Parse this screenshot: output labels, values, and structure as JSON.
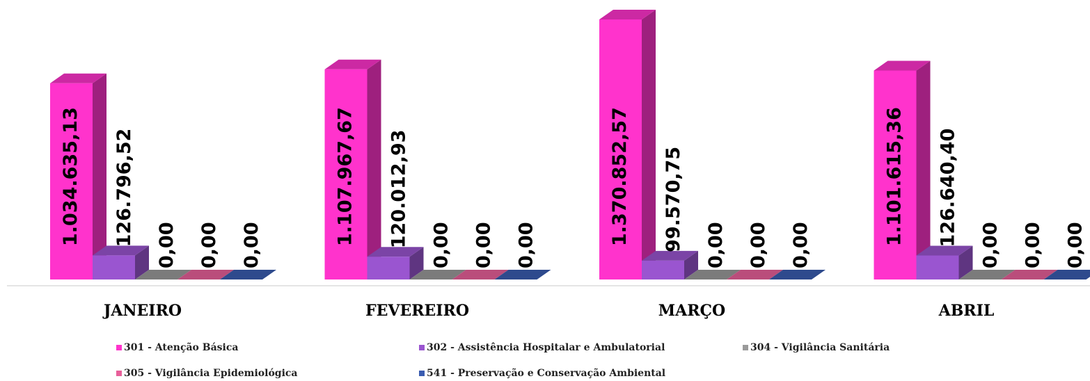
{
  "chart_data": {
    "type": "bar3d",
    "categories": [
      "JANEIRO",
      "FEVEREIRO",
      "MARÇO",
      "ABRIL"
    ],
    "series": [
      {
        "name": "301 - Atenção Básica",
        "color": "#ff33cc",
        "values": [
          1034635.13,
          1107967.67,
          1370852.57,
          1101615.36
        ],
        "value_labels": [
          "1.034.635,13",
          "1.107.967,67",
          "1.370.852,57",
          "1.101.615,36"
        ]
      },
      {
        "name": "302 - Assistência Hospitalar e Ambulatorial",
        "color": "#9a55d0",
        "values": [
          126796.52,
          120012.93,
          99570.75,
          126640.4
        ],
        "value_labels": [
          "126.796,52",
          "120.012,93",
          "99.570,75",
          "126.640,40"
        ]
      },
      {
        "name": "304 - Vigilância Sanitária",
        "color": "#9a9a9a",
        "values": [
          0,
          0,
          0,
          0
        ],
        "value_labels": [
          "0,00",
          "0,00",
          "0,00",
          "0,00"
        ]
      },
      {
        "name": "305 - Vigilância Epidemiológica",
        "color": "#e8609a",
        "values": [
          0,
          0,
          0,
          0
        ],
        "value_labels": [
          "0,00",
          "0,00",
          "0,00",
          "0,00"
        ]
      },
      {
        "name": "541 - Preservação e Conservação Ambiental",
        "color": "#3a5cb0",
        "values": [
          0,
          0,
          0,
          0
        ],
        "value_labels": [
          "0,00",
          "0,00",
          "0,00",
          "0,00"
        ]
      }
    ]
  }
}
